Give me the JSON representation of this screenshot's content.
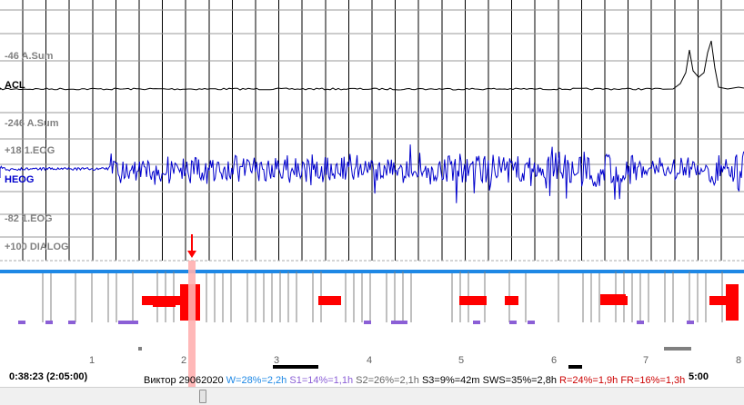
{
  "channels": {
    "acl_scale_top": "-46 A.Sum",
    "acl_name": "ACL",
    "acl_scale_bottom": "-246 A.Sum",
    "eog_scale_top": "+18 1.EOG",
    "eog_name": "HEOG",
    "eog_scale_bottom": "-82 1.EOG",
    "dialog_scale": "+100 DIALOG"
  },
  "hypnogram": {
    "hour_ticks": [
      "1",
      "2",
      "3",
      "4",
      "5",
      "6",
      "7",
      "8"
    ]
  },
  "status": {
    "cursor_time": "0:38:23 (2:05:00)",
    "end_time": "5:00",
    "patient": "Виктор 29062020",
    "w_stat": "W=28%=2,2h",
    "s1_stat": "S1=14%=1,1h",
    "s2_stat": "S2=26%=2,1h",
    "s3_stat": "S3=9%=42m",
    "sws_stat": "SWS=35%=2,8h",
    "r_stat": "R=24%=1,9h",
    "fr_stat": "FR=16%=1,3h"
  },
  "colors": {
    "wake": "#1e88e5",
    "s1": "#8b5fd6",
    "rem": "#ff0000",
    "s3": "#000000",
    "eog_trace": "#0000cc",
    "grid": "#000000",
    "cursor_band": "#ffb0b0",
    "cursor_arrow": "#ff0000",
    "w_stat": "#1e88e5",
    "s1_stat": "#8b5fd6",
    "s2_stat": "#666666",
    "s3_stat": "#000000",
    "sws_stat": "#000000",
    "r_stat": "#cc0000",
    "fr_stat": "#cc0000"
  }
}
